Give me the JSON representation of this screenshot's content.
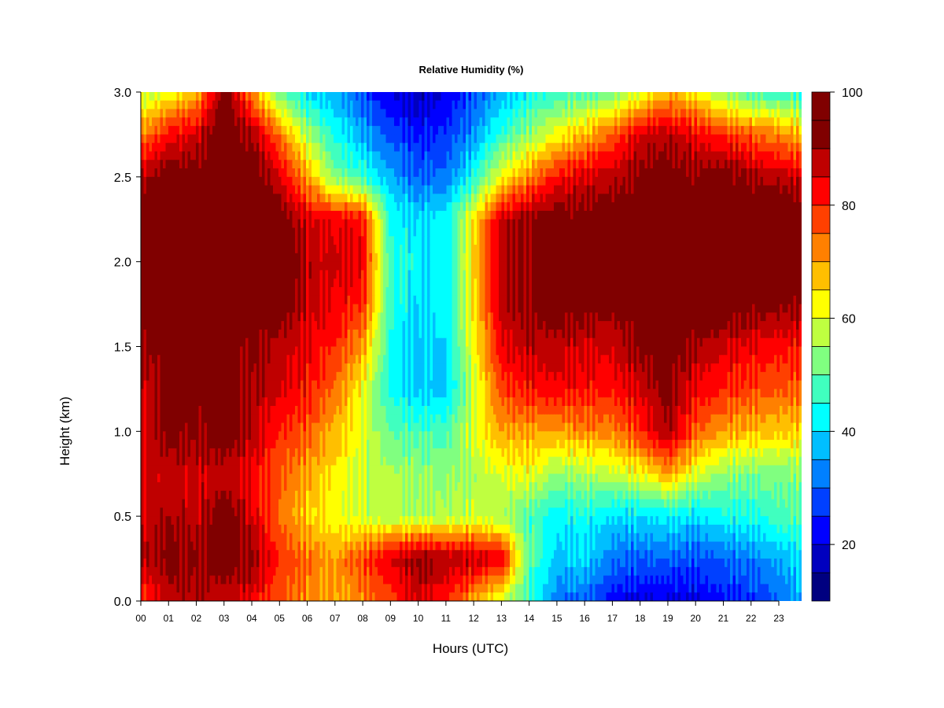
{
  "chart_data": {
    "type": "heatmap",
    "title": "Relative Humidity (%)",
    "xlabel": "Hours (UTC)",
    "ylabel": "Height (km)",
    "xlim": [
      0,
      24
    ],
    "ylim": [
      0,
      3
    ],
    "x_ticks": [
      0,
      1,
      2,
      3,
      4,
      5,
      6,
      7,
      8,
      9,
      10,
      11,
      12,
      13,
      14,
      15,
      16,
      17,
      18,
      19,
      20,
      21,
      22,
      23
    ],
    "x_tick_labels": [
      "00",
      "01",
      "02",
      "03",
      "04",
      "05",
      "06",
      "07",
      "08",
      "09",
      "10",
      "11",
      "12",
      "13",
      "14",
      "15",
      "16",
      "17",
      "18",
      "19",
      "20",
      "21",
      "22",
      "23"
    ],
    "y_ticks": [
      0.0,
      0.5,
      1.0,
      1.5,
      2.0,
      2.5,
      3.0
    ],
    "y_tick_labels": [
      "0.0",
      "0.5",
      "1.0",
      "1.5",
      "2.0",
      "2.5",
      "3.0"
    ],
    "colorbar": {
      "label": "",
      "range": [
        10,
        100
      ],
      "ticks": [
        20,
        40,
        60,
        80,
        100
      ],
      "tick_labels": [
        "20",
        "40",
        "60",
        "80",
        "100"
      ],
      "levels": [
        10,
        15,
        20,
        25,
        30,
        35,
        40,
        45,
        50,
        55,
        60,
        65,
        70,
        75,
        80,
        85,
        90,
        95,
        100
      ],
      "colors": [
        "#000080",
        "#0000bf",
        "#0000ff",
        "#0040ff",
        "#0080ff",
        "#00bfff",
        "#00ffff",
        "#40ffbf",
        "#80ff80",
        "#bfff40",
        "#ffff00",
        "#ffbf00",
        "#ff8000",
        "#ff4000",
        "#ff0000",
        "#bf0000",
        "#800000",
        "#800000"
      ]
    },
    "heights_km": [
      0.0,
      0.25,
      0.5,
      0.75,
      1.0,
      1.25,
      1.5,
      1.75,
      2.0,
      2.25,
      2.5,
      2.75,
      3.0
    ],
    "hours_utc": [
      0,
      1,
      2,
      3,
      4,
      5,
      6,
      7,
      8,
      9,
      10,
      11,
      12,
      13,
      14,
      15,
      16,
      17,
      18,
      19,
      20,
      21,
      22,
      23,
      24
    ],
    "values": [
      [
        78,
        88,
        88,
        86,
        84,
        76,
        72,
        70,
        72,
        78,
        86,
        80,
        70,
        58,
        46,
        32,
        30,
        22,
        20,
        20,
        20,
        24,
        26,
        30,
        38
      ],
      [
        88,
        92,
        92,
        94,
        92,
        80,
        74,
        70,
        78,
        86,
        92,
        90,
        88,
        84,
        50,
        38,
        40,
        32,
        30,
        30,
        28,
        30,
        32,
        36,
        42
      ],
      [
        86,
        90,
        86,
        94,
        86,
        74,
        66,
        62,
        58,
        56,
        56,
        56,
        58,
        56,
        48,
        42,
        44,
        40,
        40,
        42,
        40,
        44,
        44,
        48,
        50
      ],
      [
        84,
        88,
        86,
        88,
        84,
        76,
        70,
        64,
        58,
        56,
        54,
        54,
        56,
        60,
        62,
        54,
        56,
        58,
        62,
        70,
        60,
        54,
        52,
        52,
        54
      ],
      [
        86,
        92,
        92,
        94,
        88,
        80,
        76,
        68,
        60,
        50,
        48,
        48,
        60,
        70,
        70,
        70,
        72,
        72,
        80,
        90,
        76,
        70,
        68,
        66,
        66
      ],
      [
        86,
        92,
        94,
        92,
        90,
        86,
        82,
        74,
        62,
        44,
        38,
        38,
        58,
        78,
        82,
        84,
        82,
        82,
        86,
        92,
        84,
        80,
        78,
        76,
        76
      ],
      [
        90,
        94,
        94,
        94,
        92,
        88,
        84,
        80,
        70,
        44,
        38,
        40,
        62,
        84,
        88,
        88,
        86,
        86,
        92,
        94,
        90,
        86,
        84,
        82,
        82
      ],
      [
        98,
        98,
        98,
        98,
        98,
        94,
        88,
        84,
        80,
        46,
        40,
        42,
        64,
        88,
        92,
        94,
        94,
        92,
        98,
        98,
        98,
        96,
        94,
        92,
        92
      ],
      [
        98,
        98,
        98,
        98,
        98,
        96,
        88,
        86,
        84,
        46,
        42,
        42,
        66,
        88,
        92,
        92,
        94,
        94,
        98,
        98,
        98,
        98,
        98,
        98,
        98
      ],
      [
        98,
        98,
        98,
        98,
        98,
        94,
        86,
        84,
        82,
        44,
        40,
        42,
        64,
        88,
        92,
        94,
        94,
        94,
        98,
        98,
        98,
        98,
        98,
        98,
        98
      ],
      [
        88,
        94,
        94,
        98,
        96,
        86,
        70,
        52,
        46,
        36,
        30,
        32,
        44,
        62,
        72,
        82,
        86,
        88,
        92,
        94,
        92,
        94,
        90,
        88,
        86
      ],
      [
        72,
        82,
        86,
        96,
        90,
        74,
        56,
        44,
        36,
        28,
        24,
        26,
        34,
        46,
        54,
        62,
        68,
        76,
        86,
        88,
        84,
        80,
        76,
        72,
        68
      ],
      [
        56,
        62,
        68,
        94,
        72,
        50,
        40,
        36,
        28,
        20,
        16,
        20,
        28,
        36,
        42,
        46,
        48,
        50,
        60,
        68,
        62,
        54,
        48,
        46,
        44
      ]
    ]
  }
}
